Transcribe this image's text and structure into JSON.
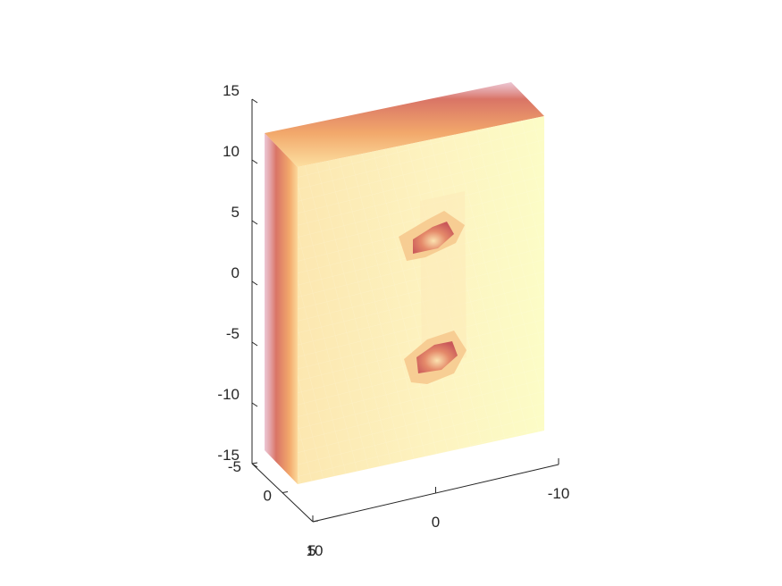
{
  "chart_data": {
    "type": "3d-voxel",
    "description_free": true,
    "z_axis": {
      "ticks": [
        15,
        10,
        5,
        0,
        -5,
        -10,
        -15
      ],
      "labels": [
        "15",
        "10",
        "5",
        "0",
        "-5",
        "-10",
        "-15"
      ],
      "lim": [
        -15,
        15
      ]
    },
    "x_axis": {
      "ticks": [
        10,
        0,
        -10
      ],
      "labels": [
        "10",
        "0",
        "-10"
      ],
      "lim": [
        -10,
        10
      ]
    },
    "y_axis": {
      "ticks": [
        -5,
        0,
        5
      ],
      "labels": [
        "-5",
        "0",
        "5"
      ],
      "lim": [
        -5,
        5
      ]
    },
    "block": {
      "x": [
        -9,
        9
      ],
      "y": [
        -4,
        4
      ],
      "z": [
        -12,
        13
      ]
    },
    "holes": [
      {
        "center_x": 0.5,
        "center_z": 5,
        "radius": 2.5
      },
      {
        "center_x": 0.5,
        "center_z": -6,
        "radius": 2.5
      }
    ],
    "colors": {
      "face_light": "#fdfbc4",
      "face_mid": "#fce7a8",
      "edge_orange": "#f2a86b",
      "edge_red": "#d97466",
      "edge_shadow": "#c78a9a",
      "hole_inner": "#d9645e"
    },
    "grid": false,
    "legend": "none"
  }
}
